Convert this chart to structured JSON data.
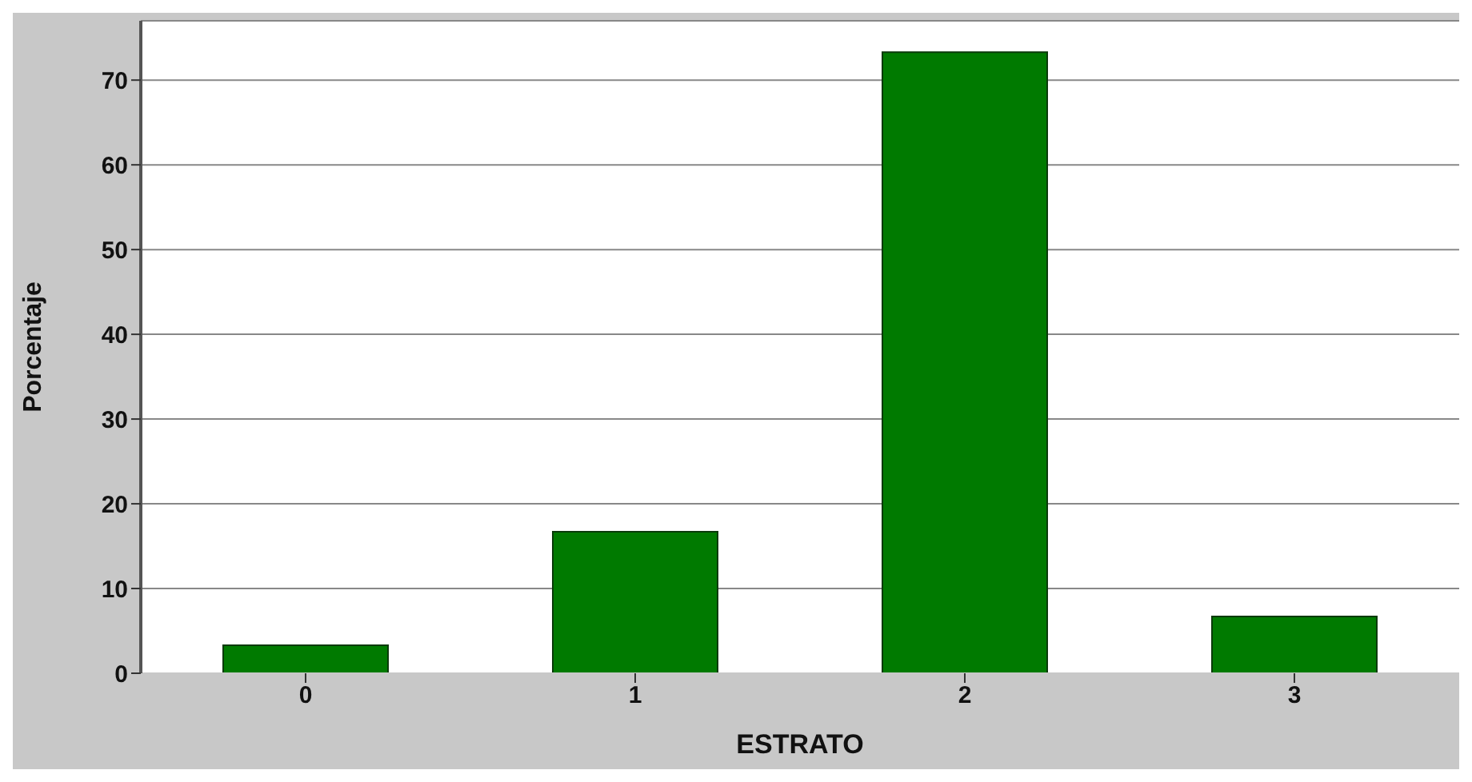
{
  "chart_data": {
    "type": "bar",
    "xlabel": "ESTRATO",
    "ylabel": "Porcentaje",
    "categories": [
      "0",
      "1",
      "2",
      "3"
    ],
    "values": [
      3.3,
      16.7,
      73.3,
      6.7
    ],
    "color": "#007a00",
    "ylim": [
      0,
      77
    ],
    "yticks": [
      0,
      10,
      20,
      30,
      40,
      50,
      60,
      70
    ],
    "grid": "y"
  }
}
